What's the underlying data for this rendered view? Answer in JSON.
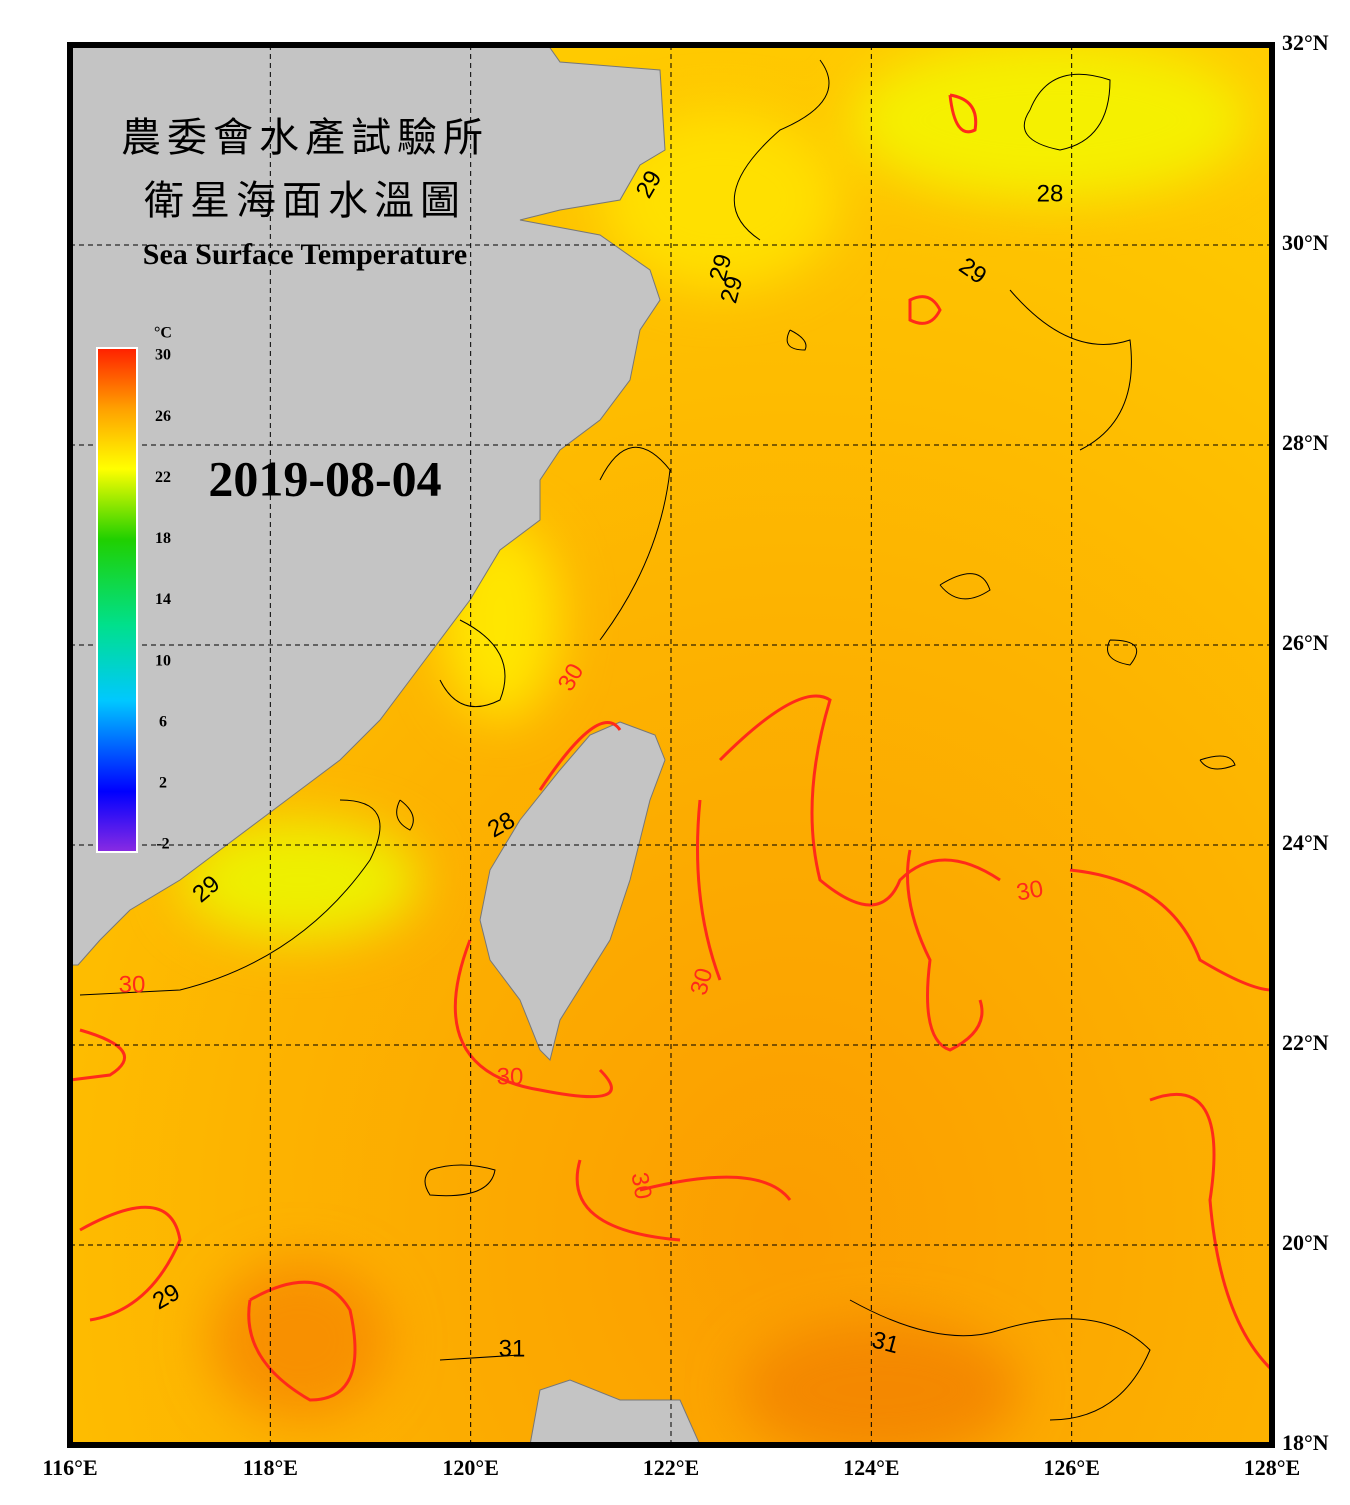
{
  "title_zh": "農委會水產試驗所",
  "subtitle_zh": "衛星海面水溫圖",
  "title_en": "Sea Surface Temperature",
  "date": "2019-08-04",
  "map": {
    "lon_lim": [
      116,
      128
    ],
    "lat_lim": [
      18,
      32
    ],
    "lon_ticks": [
      {
        "value": 116,
        "label": "116°E"
      },
      {
        "value": 118,
        "label": "118°E"
      },
      {
        "value": 120,
        "label": "120°E"
      },
      {
        "value": 122,
        "label": "122°E"
      },
      {
        "value": 124,
        "label": "124°E"
      },
      {
        "value": 126,
        "label": "126°E"
      },
      {
        "value": 128,
        "label": "128°E"
      }
    ],
    "lat_ticks": [
      {
        "value": 18,
        "label": "18°N"
      },
      {
        "value": 20,
        "label": "20°N"
      },
      {
        "value": 22,
        "label": "22°N"
      },
      {
        "value": 24,
        "label": "24°N"
      },
      {
        "value": 26,
        "label": "26°N"
      },
      {
        "value": 28,
        "label": "28°N"
      },
      {
        "value": 30,
        "label": "30°N"
      },
      {
        "value": 32,
        "label": "32°N"
      }
    ]
  },
  "colorbar": {
    "unit": "°C",
    "lim": [
      -2,
      30
    ],
    "ticks": [
      30,
      26,
      22,
      18,
      14,
      10,
      6,
      2,
      -2
    ]
  },
  "contour_labels": [
    29,
    28,
    29,
    29,
    29,
    30,
    28,
    29,
    30,
    30,
    30,
    30,
    30,
    29,
    31,
    31
  ]
}
